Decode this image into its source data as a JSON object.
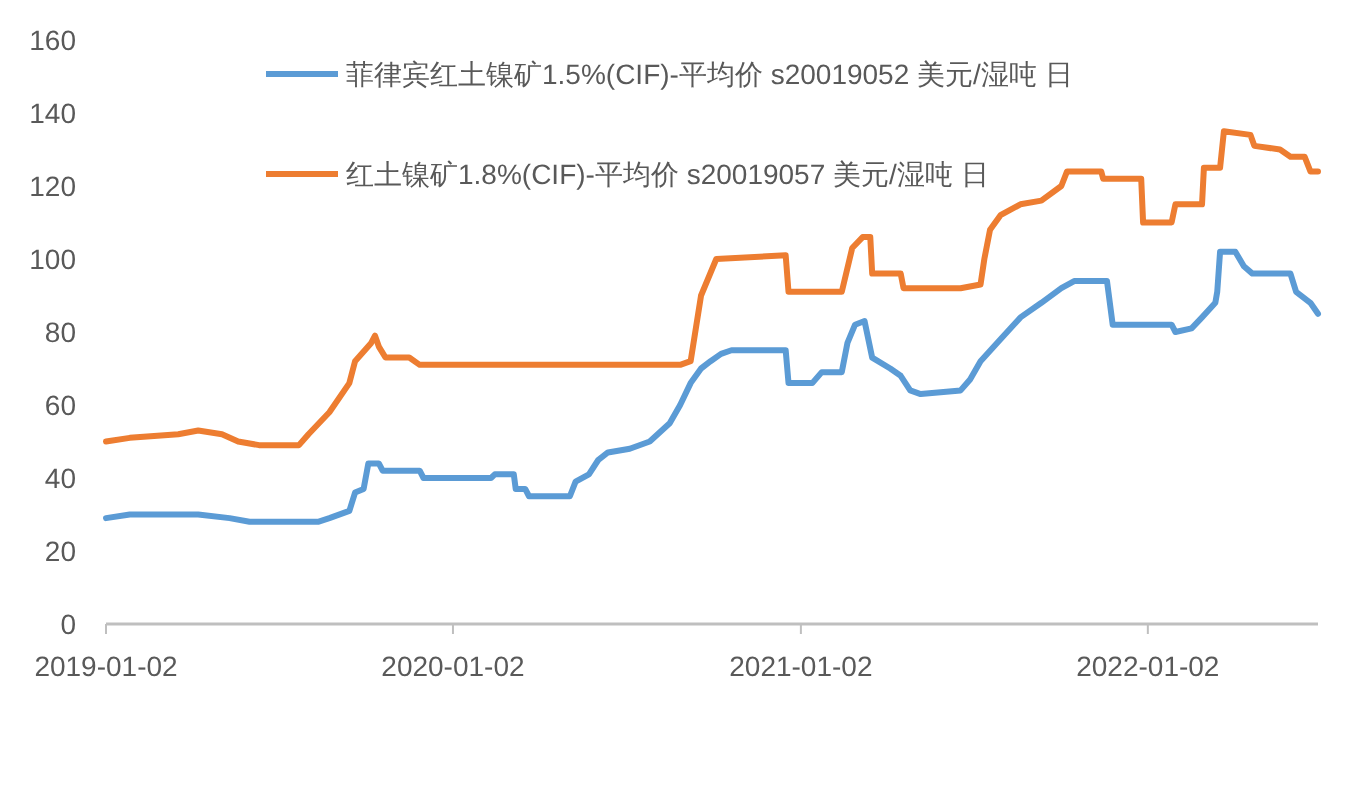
{
  "chart_data": {
    "type": "line",
    "legend": "top",
    "marker": "none",
    "line_style": "solid",
    "xlim": [
      "2019-01-02",
      "2022-06-30"
    ],
    "xticks": [
      {
        "value": "2019-01-02",
        "label": "2019-01-02"
      },
      {
        "value": "2020-01-02",
        "label": "2020-01-02"
      },
      {
        "value": "2021-01-02",
        "label": "2021-01-02"
      },
      {
        "value": "2022-01-02",
        "label": "2022-01-02"
      }
    ],
    "ylim": [
      0,
      160
    ],
    "yticks": [
      0,
      20,
      40,
      60,
      80,
      100,
      120,
      140,
      160
    ],
    "series": [
      {
        "name": "菲律宾红土镍矿1.5%(CIF)-平均价 s20019052 美元/湿吨 日",
        "color": "#5b9bd5",
        "x": [
          "2019-01-02",
          "2019-01-27",
          "2019-04-09",
          "2019-05-12",
          "2019-06-02",
          "2019-08-13",
          "2019-08-25",
          "2019-09-15",
          "2019-09-21",
          "2019-09-30",
          "2019-10-05",
          "2019-10-16",
          "2019-10-20",
          "2019-11-28",
          "2019-12-02",
          "2020-02-11",
          "2020-02-15",
          "2020-03-06",
          "2020-03-08",
          "2020-03-18",
          "2020-03-22",
          "2020-05-04",
          "2020-05-10",
          "2020-05-24",
          "2020-06-03",
          "2020-06-13",
          "2020-07-06",
          "2020-07-27",
          "2020-08-17",
          "2020-08-28",
          "2020-09-08",
          "2020-09-19",
          "2020-09-29",
          "2020-10-10",
          "2020-10-21",
          "2020-12-17",
          "2020-12-20",
          "2021-01-14",
          "2021-01-24",
          "2021-02-14",
          "2021-02-20",
          "2021-02-28",
          "2021-03-10",
          "2021-03-18",
          "2021-04-06",
          "2021-04-17",
          "2021-04-27",
          "2021-05-08",
          "2021-06-19",
          "2021-06-29",
          "2021-07-10",
          "2021-07-31",
          "2021-08-21",
          "2021-09-12",
          "2021-10-03",
          "2021-10-17",
          "2021-11-20",
          "2021-11-26",
          "2022-01-27",
          "2022-01-31",
          "2022-02-17",
          "2022-02-28",
          "2022-03-14",
          "2022-03-16",
          "2022-03-19",
          "2022-04-04",
          "2022-04-13",
          "2022-04-22",
          "2022-06-01",
          "2022-06-07",
          "2022-06-22",
          "2022-06-30"
        ],
        "values": [
          29,
          30,
          30,
          29,
          28,
          28,
          29,
          31,
          36,
          37,
          44,
          44,
          42,
          42,
          40,
          40,
          41,
          41,
          37,
          37,
          35,
          35,
          39,
          41,
          45,
          47,
          48,
          50,
          55,
          60,
          66,
          70,
          72,
          74,
          75,
          75,
          66,
          66,
          69,
          69,
          77,
          82,
          83,
          73,
          70,
          68,
          64,
          63,
          64,
          67,
          72,
          78,
          84,
          88,
          92,
          94,
          94,
          82,
          82,
          80,
          81,
          84,
          88,
          91,
          102,
          102,
          98,
          96,
          96,
          91,
          88,
          85
        ]
      },
      {
        "name": "红土镍矿1.8%(CIF)-平均价 s20019057 美元/湿吨 日",
        "color": "#ed7d31",
        "x": [
          "2019-01-02",
          "2019-01-27",
          "2019-03-19",
          "2019-04-09",
          "2019-05-04",
          "2019-05-21",
          "2019-06-12",
          "2019-07-24",
          "2019-08-03",
          "2019-08-25",
          "2019-09-15",
          "2019-09-21",
          "2019-10-08",
          "2019-10-12",
          "2019-10-16",
          "2019-10-23",
          "2019-11-17",
          "2019-11-28",
          "2020-08-28",
          "2020-09-08",
          "2020-09-19",
          "2020-10-05",
          "2020-12-17",
          "2020-12-20",
          "2021-02-14",
          "2021-02-25",
          "2021-03-08",
          "2021-03-16",
          "2021-03-18",
          "2021-04-17",
          "2021-04-20",
          "2021-06-19",
          "2021-07-10",
          "2021-07-14",
          "2021-07-20",
          "2021-07-31",
          "2021-08-21",
          "2021-09-12",
          "2021-10-03",
          "2021-10-09",
          "2021-11-14",
          "2021-11-16",
          "2021-12-26",
          "2021-12-28",
          "2022-01-27",
          "2022-01-31",
          "2022-02-28",
          "2022-03-02",
          "2022-03-19",
          "2022-03-23",
          "2022-04-20",
          "2022-04-24",
          "2022-05-21",
          "2022-06-01",
          "2022-06-16",
          "2022-06-22",
          "2022-06-30"
        ],
        "values": [
          50,
          51,
          52,
          53,
          52,
          50,
          49,
          49,
          52,
          58,
          66,
          72,
          77,
          79,
          76,
          73,
          73,
          71,
          71,
          72,
          90,
          100,
          101,
          91,
          91,
          103,
          106,
          106,
          96,
          96,
          92,
          92,
          93,
          100,
          108,
          112,
          115,
          116,
          120,
          124,
          124,
          122,
          122,
          110,
          110,
          115,
          115,
          125,
          125,
          135,
          134,
          131,
          130,
          128,
          128,
          124,
          124
        ]
      }
    ]
  }
}
